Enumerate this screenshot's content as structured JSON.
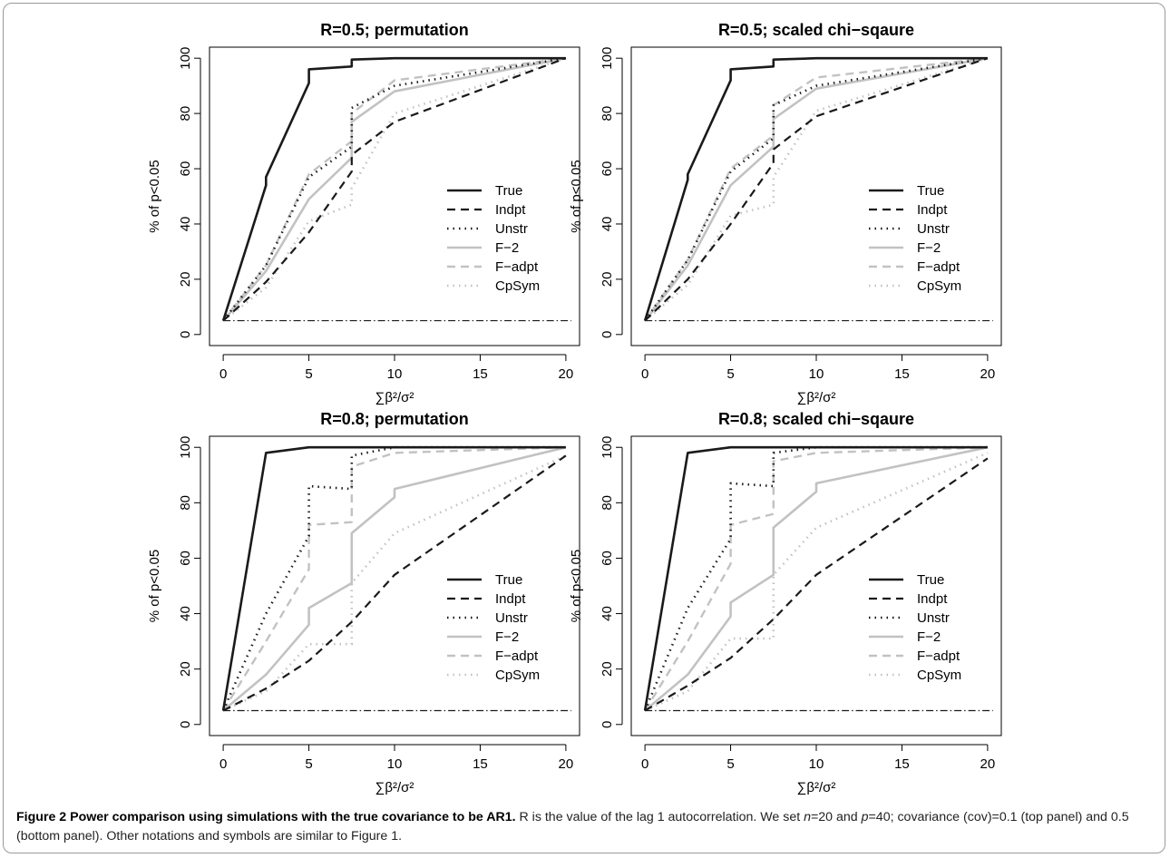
{
  "caption": {
    "title": "Figure 2 Power comparison using simulations with the true covariance to be AR1.",
    "text_parts": [
      " R is the value of the lag 1 autocorrelation. We set ",
      "n",
      "=20 and ",
      "p",
      "=40; covariance (cov)=0.1 (top panel) and 0.5 (bottom panel). Other notations and symbols are similar to Figure 1."
    ]
  },
  "chart_data": [
    {
      "type": "line",
      "title": "R=0.5; permutation",
      "xlabel": "∑β²/σ²",
      "ylabel": "% of p<0.05",
      "xlim": [
        0,
        20
      ],
      "ylim": [
        0,
        100
      ],
      "xticks": [
        "0",
        "5",
        "10",
        "15",
        "20"
      ],
      "yticks": [
        "0",
        "20",
        "40",
        "60",
        "80",
        "100"
      ],
      "legend_position": "right",
      "reference_line": 5,
      "series": [
        {
          "name": "True",
          "x": [
            0,
            2.5,
            2.5,
            5,
            5,
            7.5,
            7.5,
            10,
            20
          ],
          "y": [
            5,
            54,
            57,
            91,
            96,
            97,
            99.5,
            100,
            100
          ]
        },
        {
          "name": "Indpt",
          "x": [
            0,
            2.5,
            5,
            7.5,
            7.5,
            10,
            20
          ],
          "y": [
            5,
            19,
            37,
            59,
            65,
            77,
            100
          ]
        },
        {
          "name": "Unstr",
          "x": [
            0,
            2.5,
            5,
            7.5,
            7.5,
            10,
            20
          ],
          "y": [
            5,
            25,
            57,
            68,
            82,
            90,
            100
          ]
        },
        {
          "name": "F−2",
          "x": [
            0,
            2.5,
            5,
            7.5,
            7.5,
            10,
            20
          ],
          "y": [
            5,
            23,
            49,
            64,
            77,
            88,
            100
          ]
        },
        {
          "name": "F−adpt",
          "x": [
            0,
            2.5,
            5,
            7.5,
            7.5,
            10,
            20
          ],
          "y": [
            5,
            25,
            58,
            70,
            80,
            92,
            100
          ]
        },
        {
          "name": "CpSym",
          "x": [
            0,
            2.5,
            5,
            7.5,
            7.5,
            10,
            20
          ],
          "y": [
            5,
            17,
            41,
            47,
            53,
            80,
            100
          ]
        }
      ]
    },
    {
      "type": "line",
      "title": "R=0.5; scaled chi−sqaure",
      "xlabel": "∑β²/σ²",
      "ylabel": "% of p<0.05",
      "xlim": [
        0,
        20
      ],
      "ylim": [
        0,
        100
      ],
      "xticks": [
        "0",
        "5",
        "10",
        "15",
        "20"
      ],
      "yticks": [
        "0",
        "20",
        "40",
        "60",
        "80",
        "100"
      ],
      "legend_position": "right",
      "reference_line": 5,
      "series": [
        {
          "name": "True",
          "x": [
            0,
            2.5,
            2.5,
            5,
            5,
            7.5,
            7.5,
            10,
            20
          ],
          "y": [
            5,
            56,
            58,
            92,
            96,
            97,
            99.5,
            100,
            100
          ]
        },
        {
          "name": "Indpt",
          "x": [
            0,
            2.5,
            5,
            7.5,
            7.5,
            10,
            20
          ],
          "y": [
            5,
            20,
            40,
            62,
            67,
            79,
            100
          ]
        },
        {
          "name": "Unstr",
          "x": [
            0,
            2.5,
            5,
            7.5,
            7.5,
            10,
            20
          ],
          "y": [
            5,
            27,
            59,
            71,
            83,
            90,
            100
          ]
        },
        {
          "name": "F−2",
          "x": [
            0,
            2.5,
            5,
            7.5,
            7.5,
            10,
            20
          ],
          "y": [
            5,
            25,
            54,
            68,
            78,
            89,
            100
          ]
        },
        {
          "name": "F−adpt",
          "x": [
            0,
            2.5,
            5,
            7.5,
            7.5,
            10,
            20
          ],
          "y": [
            5,
            27,
            60,
            72,
            83,
            93,
            100
          ]
        },
        {
          "name": "CpSym",
          "x": [
            0,
            2.5,
            5,
            7.5,
            7.5,
            10,
            20
          ],
          "y": [
            5,
            18,
            43,
            47,
            57,
            81,
            100
          ]
        }
      ]
    },
    {
      "type": "line",
      "title": "R=0.8; permutation",
      "xlabel": "∑β²/σ²",
      "ylabel": "% of p<0.05",
      "xlim": [
        0,
        20
      ],
      "ylim": [
        0,
        100
      ],
      "xticks": [
        "0",
        "5",
        "10",
        "15",
        "20"
      ],
      "yticks": [
        "0",
        "20",
        "40",
        "60",
        "80",
        "100"
      ],
      "legend_position": "right",
      "reference_line": 5,
      "series": [
        {
          "name": "True",
          "x": [
            0,
            2.5,
            5,
            20
          ],
          "y": [
            5,
            98,
            100,
            100
          ]
        },
        {
          "name": "Indpt",
          "x": [
            0,
            2.5,
            5,
            7.5,
            10,
            20
          ],
          "y": [
            5,
            13,
            23,
            37,
            54,
            97
          ]
        },
        {
          "name": "Unstr",
          "x": [
            0,
            2.5,
            5,
            5,
            7.5,
            7.5,
            10,
            20
          ],
          "y": [
            5,
            40,
            68,
            86,
            85,
            97,
            100,
            100
          ]
        },
        {
          "name": "F−2",
          "x": [
            0,
            2.5,
            5,
            5,
            7.5,
            7.5,
            10,
            10,
            20
          ],
          "y": [
            5,
            18,
            36,
            42,
            51,
            69,
            82,
            85,
            100
          ]
        },
        {
          "name": "F−adpt",
          "x": [
            0,
            2.5,
            5,
            5,
            7.5,
            7.5,
            10,
            20
          ],
          "y": [
            5,
            30,
            56,
            72,
            73,
            93,
            98,
            100
          ]
        },
        {
          "name": "CpSym",
          "x": [
            0,
            2.5,
            5,
            7.5,
            7.5,
            10,
            20
          ],
          "y": [
            5,
            12,
            29,
            29,
            51,
            69,
            97
          ]
        }
      ]
    },
    {
      "type": "line",
      "title": "R=0.8; scaled chi−sqaure",
      "xlabel": "∑β²/σ²",
      "ylabel": "% of p<0.05",
      "xlim": [
        0,
        20
      ],
      "ylim": [
        0,
        100
      ],
      "xticks": [
        "0",
        "5",
        "10",
        "15",
        "20"
      ],
      "yticks": [
        "0",
        "20",
        "40",
        "60",
        "80",
        "100"
      ],
      "legend_position": "right",
      "reference_line": 5,
      "series": [
        {
          "name": "True",
          "x": [
            0,
            2.5,
            5,
            20
          ],
          "y": [
            5,
            98,
            100,
            100
          ]
        },
        {
          "name": "Indpt",
          "x": [
            0,
            2.5,
            5,
            7.5,
            10,
            20
          ],
          "y": [
            5,
            14,
            24,
            38,
            54,
            96
          ]
        },
        {
          "name": "Unstr",
          "x": [
            0,
            2.5,
            5,
            5,
            7.5,
            7.5,
            10,
            20
          ],
          "y": [
            5,
            42,
            67,
            87,
            86,
            98,
            100,
            100
          ]
        },
        {
          "name": "F−2",
          "x": [
            0,
            2.5,
            5,
            5,
            7.5,
            7.5,
            10,
            10,
            20
          ],
          "y": [
            5,
            18,
            39,
            44,
            54,
            71,
            84,
            87,
            100
          ]
        },
        {
          "name": "F−adpt",
          "x": [
            0,
            2.5,
            5,
            5,
            7.5,
            7.5,
            10,
            20
          ],
          "y": [
            5,
            30,
            58,
            72,
            76,
            95,
            98,
            100
          ]
        },
        {
          "name": "CpSym",
          "x": [
            0,
            2.5,
            5,
            7.5,
            7.5,
            10,
            20
          ],
          "y": [
            5,
            12,
            31,
            31,
            54,
            71,
            98
          ]
        }
      ]
    }
  ],
  "series_styles": {
    "True": {
      "color": "#1a1a1a",
      "dash": "",
      "width": 2.6
    },
    "Indpt": {
      "color": "#1a1a1a",
      "dash": "9,6",
      "width": 2.2
    },
    "Unstr": {
      "color": "#1a1a1a",
      "dash": "1.5,5",
      "width": 2.6
    },
    "F−2": {
      "color": "#c2c2c2",
      "dash": "",
      "width": 2.6
    },
    "F−adpt": {
      "color": "#c2c2c2",
      "dash": "9,6",
      "width": 2.4
    },
    "CpSym": {
      "color": "#c2c2c2",
      "dash": "1.5,5",
      "width": 2.6
    }
  },
  "reference_line_style": {
    "color": "#1a1a1a",
    "dash": "8,3,1.5,3"
  }
}
